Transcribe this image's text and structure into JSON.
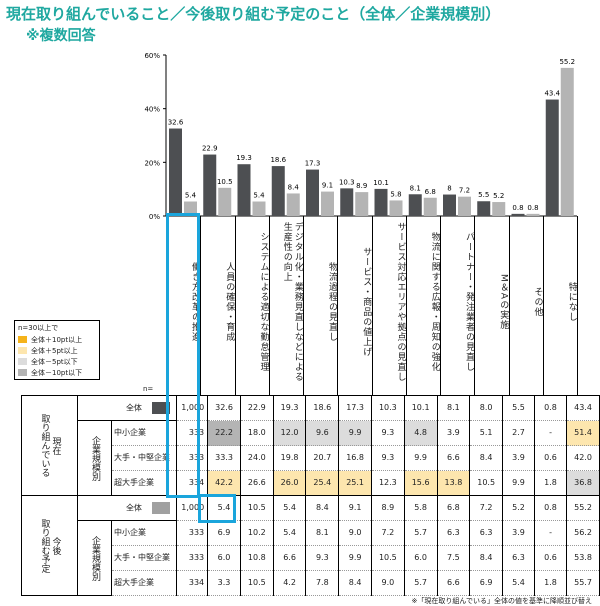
{
  "title": "現在取り組んでいること／今後取り組む予定のこと（全体／企業規模別）",
  "subtitle": "※複数回答",
  "colors": {
    "current": "#4d4f52",
    "future": "#b4b4b4",
    "accent": "#1fa8a0",
    "highlight_box": "#1aa5dc",
    "p10": "#f5b31a",
    "p5": "#fde6ae",
    "m5": "#dcdcdc",
    "m10": "#b4b4b4"
  },
  "legend": {
    "title": "n=30以上で",
    "items": [
      {
        "label": "全体＋10pt以上",
        "color": "#f5b31a"
      },
      {
        "label": "全体＋5pt以上",
        "color": "#fde6ae"
      },
      {
        "label": "全体－5pt以下",
        "color": "#dcdcdc"
      },
      {
        "label": "全体－10pt以下",
        "color": "#b4b4b4"
      }
    ]
  },
  "n_label": "n=",
  "chart_data": {
    "type": "bar",
    "ylim": [
      0,
      60
    ],
    "yticks": [
      "0%",
      "20%",
      "40%",
      "60%"
    ],
    "categories": [
      "働き方改革の推進",
      "人員の確保・育成",
      "システムによる適切な勤怠管理",
      "デジタル化・業務見直しなどによる\n生産性の向上",
      "物流過程の見直し",
      "サービス・商品の値上げ",
      "サービス対応エリアや拠点の見直し",
      "物流に関する広報・周知の強化",
      "パートナー・発注業者の見直し",
      "M＆Aの実施",
      "その他",
      "特になし"
    ],
    "series": [
      {
        "values": [
          32.6,
          22.9,
          19.3,
          18.6,
          17.3,
          10.3,
          10.1,
          8.1,
          8.0,
          5.5,
          0.8,
          43.4
        ]
      },
      {
        "values": [
          5.4,
          10.5,
          5.4,
          8.4,
          9.1,
          8.9,
          5.8,
          6.8,
          7.2,
          5.2,
          0.8,
          55.2
        ]
      }
    ]
  },
  "table": {
    "groups": [
      {
        "label": "現在\n取り組んでいる",
        "sub": "企業規模別",
        "rows": [
          {
            "name": "全体",
            "n": "1,000",
            "swatch": "#4d4f52",
            "values": [
              "32.6",
              "22.9",
              "19.3",
              "18.6",
              "17.3",
              "10.3",
              "10.1",
              "8.1",
              "8.0",
              "5.5",
              "0.8",
              "43.4"
            ],
            "hl": []
          },
          {
            "name": "中小企業",
            "n": "333",
            "values": [
              "22.2",
              "18.0",
              "12.0",
              "9.6",
              "9.9",
              "9.3",
              "4.8",
              "3.9",
              "5.1",
              "2.7",
              "-",
              "51.4"
            ],
            "hl": [
              "m10",
              "",
              "m5",
              "m5",
              "m5",
              "",
              "m5",
              "",
              "",
              "",
              "",
              "p5"
            ]
          },
          {
            "name": "大手・中堅企業",
            "n": "333",
            "values": [
              "33.3",
              "24.0",
              "19.8",
              "20.7",
              "16.8",
              "9.3",
              "9.9",
              "6.6",
              "8.4",
              "3.9",
              "0.6",
              "42.0"
            ],
            "hl": []
          },
          {
            "name": "超大手企業",
            "n": "334",
            "values": [
              "42.2",
              "26.6",
              "26.0",
              "25.4",
              "25.1",
              "12.3",
              "15.6",
              "13.8",
              "10.5",
              "9.9",
              "1.8",
              "36.8"
            ],
            "hl": [
              "p5",
              "",
              "p5",
              "p5",
              "p5",
              "",
              "p5",
              "p5",
              "",
              "",
              "",
              "m5"
            ]
          }
        ]
      },
      {
        "label": "今後\n取り組む予定",
        "sub": "企業規模別",
        "rows": [
          {
            "name": "全体",
            "n": "1,000",
            "swatch": "#a0a0a0",
            "values": [
              "5.4",
              "10.5",
              "5.4",
              "8.4",
              "9.1",
              "8.9",
              "5.8",
              "6.8",
              "7.2",
              "5.2",
              "0.8",
              "55.2"
            ],
            "hl": []
          },
          {
            "name": "中小企業",
            "n": "333",
            "values": [
              "6.9",
              "10.2",
              "5.4",
              "8.1",
              "9.0",
              "7.2",
              "5.7",
              "6.3",
              "6.3",
              "3.9",
              "-",
              "56.2"
            ],
            "hl": []
          },
          {
            "name": "大手・中堅企業",
            "n": "333",
            "values": [
              "6.0",
              "10.8",
              "6.6",
              "9.3",
              "9.9",
              "10.5",
              "6.0",
              "7.5",
              "8.4",
              "6.3",
              "0.6",
              "53.8"
            ],
            "hl": []
          },
          {
            "name": "超大手企業",
            "n": "334",
            "values": [
              "3.3",
              "10.5",
              "4.2",
              "7.8",
              "8.4",
              "9.0",
              "5.7",
              "6.6",
              "6.9",
              "5.4",
              "1.8",
              "55.7"
            ],
            "hl": []
          }
        ]
      }
    ]
  },
  "footnote": "※「現在取り組んでいる」全体の値を基準に降順並び替え"
}
